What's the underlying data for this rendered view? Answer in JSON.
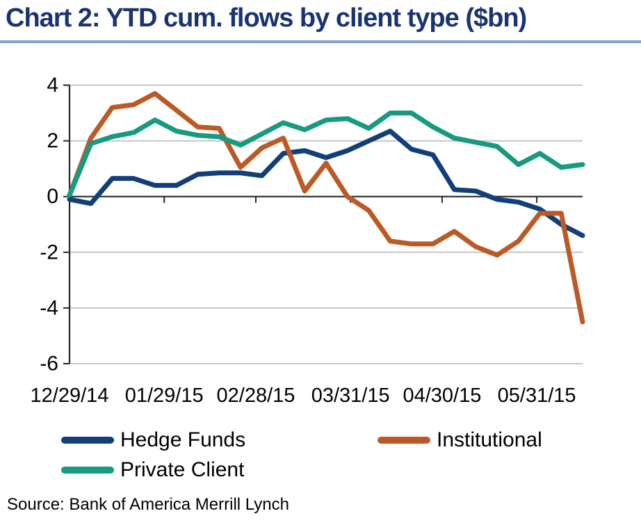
{
  "header": {
    "title": "Chart 2: YTD cum. flows by client type ($bn)",
    "title_color": "#1a3470",
    "rule_color": "#82a0c8"
  },
  "source": {
    "text": "Source: Bank of America Merrill Lynch"
  },
  "chart_data": {
    "type": "line",
    "title": "Chart 2: YTD cum. flows by client type ($bn)",
    "xlabel": "",
    "ylabel": "",
    "ylim": [
      -6,
      4
    ],
    "yticks": [
      4,
      2,
      0,
      -2,
      -4,
      -6
    ],
    "ytick_labels": [
      "4",
      "2",
      "0",
      "-2",
      "-4",
      "-6"
    ],
    "x_tick_labels": [
      "12/29/14",
      "01/29/15",
      "02/28/15",
      "03/31/15",
      "04/30/15",
      "05/31/15"
    ],
    "x_tick_days": [
      0,
      31,
      61,
      92,
      122,
      153
    ],
    "x_total_days": 168,
    "x_days": [
      0,
      7,
      14,
      21,
      28,
      35,
      42,
      49,
      56,
      63,
      70,
      77,
      84,
      91,
      98,
      105,
      112,
      119,
      126,
      133,
      140,
      147,
      154,
      161,
      168
    ],
    "grid": "horizontal",
    "gridline_color": "#c6c6c6",
    "axis_color": "#262626",
    "legend_position": "bottom-left two-column",
    "series": [
      {
        "name": "Hedge Funds",
        "color": "#123f7a",
        "values": [
          -0.1,
          -0.25,
          0.65,
          0.65,
          0.4,
          0.4,
          0.8,
          0.85,
          0.85,
          0.75,
          1.55,
          1.65,
          1.4,
          1.65,
          2.0,
          2.35,
          1.7,
          1.5,
          0.25,
          0.2,
          -0.1,
          -0.2,
          -0.45,
          -1.0,
          -1.4
        ]
      },
      {
        "name": "Institutional",
        "color": "#bc5a26",
        "values": [
          0.05,
          2.1,
          3.2,
          3.3,
          3.7,
          3.1,
          2.5,
          2.45,
          1.05,
          1.75,
          2.1,
          0.2,
          1.2,
          0.0,
          -0.5,
          -1.6,
          -1.7,
          -1.7,
          -1.25,
          -1.8,
          -2.1,
          -1.6,
          -0.6,
          -0.6,
          -4.5
        ]
      },
      {
        "name": "Private Client",
        "color": "#169a80",
        "values": [
          0.05,
          1.9,
          2.15,
          2.3,
          2.75,
          2.35,
          2.2,
          2.15,
          1.85,
          2.25,
          2.65,
          2.4,
          2.75,
          2.8,
          2.45,
          3.0,
          3.0,
          2.5,
          2.1,
          1.95,
          1.8,
          1.15,
          1.55,
          1.05,
          1.15
        ]
      }
    ]
  }
}
